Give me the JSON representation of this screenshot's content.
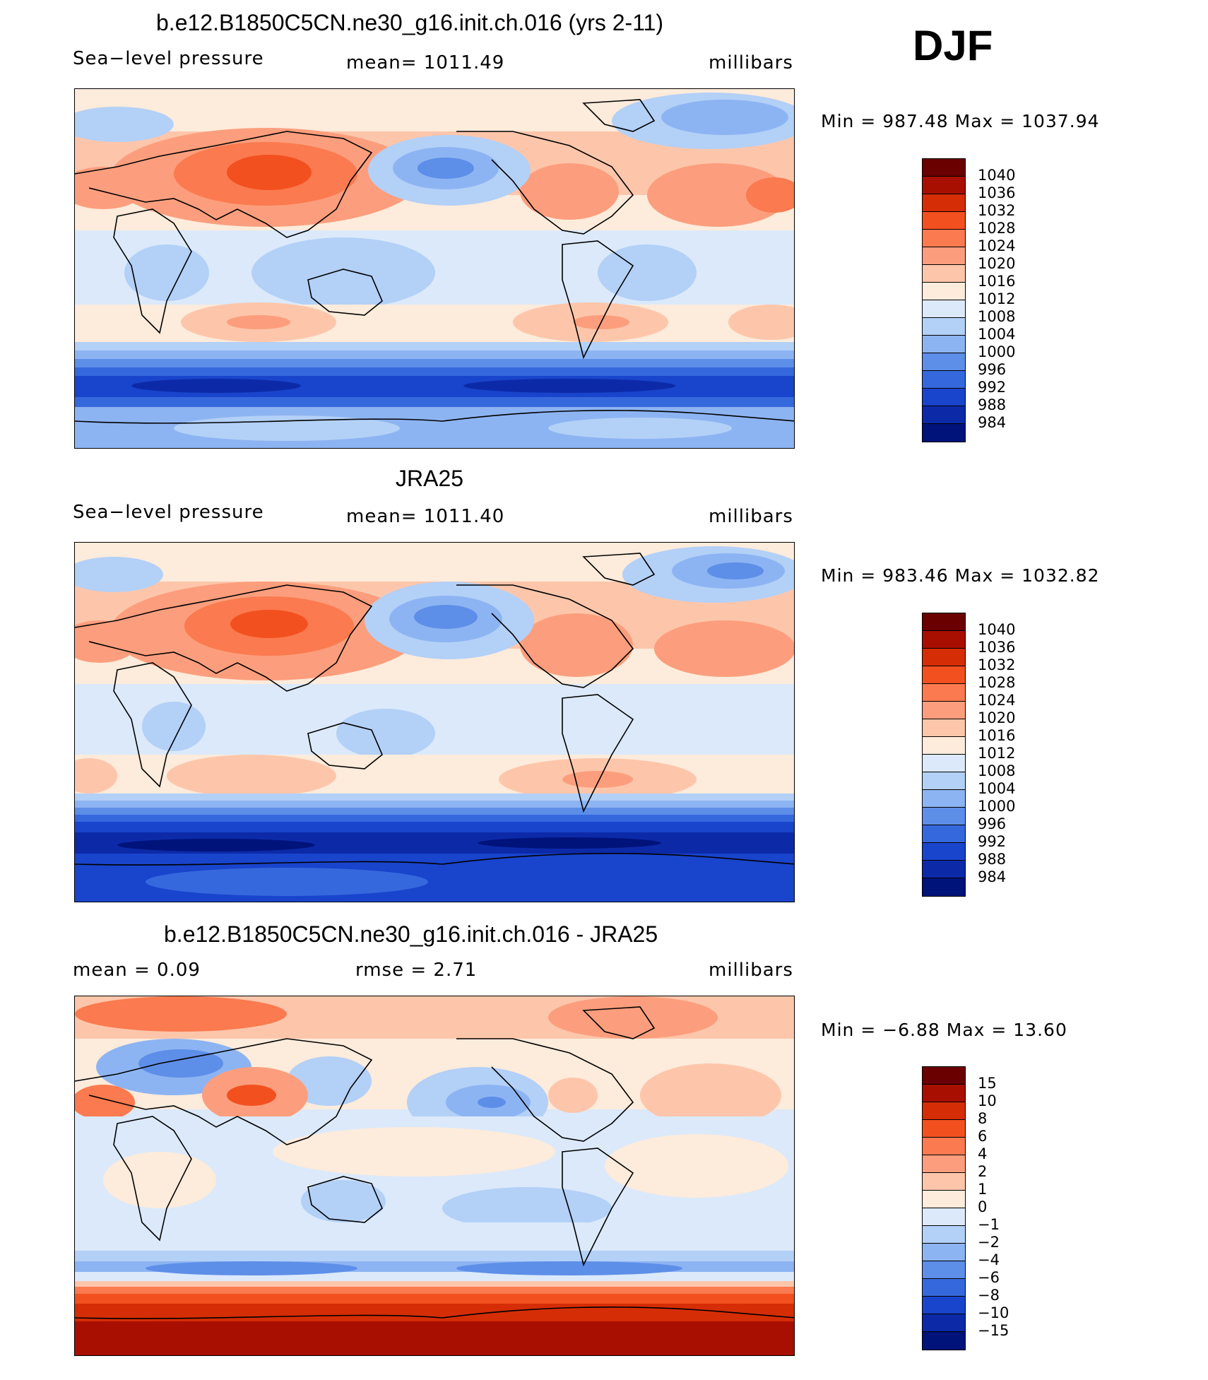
{
  "season": "DJF",
  "panels": [
    {
      "title": "b.e12.B1850C5CN.ne30_g16.init.ch.016 (yrs 2-11)",
      "left": "Sea−level pressure",
      "center": "mean=  1011.49",
      "units": "millibars",
      "minmax": "Min  =  987.48  Max  =  1037.94",
      "colorbar_labels": [
        "1040",
        "1036",
        "1032",
        "1028",
        "1024",
        "1020",
        "1016",
        "1012",
        "1008",
        "1004",
        "1000",
        "996",
        "992",
        "988",
        "984"
      ]
    },
    {
      "title": "JRA25",
      "left": "Sea−level pressure",
      "center": "mean=  1011.40",
      "units": "millibars",
      "minmax": "Min  =  983.46  Max  =  1032.82",
      "colorbar_labels": [
        "1040",
        "1036",
        "1032",
        "1028",
        "1024",
        "1020",
        "1016",
        "1012",
        "1008",
        "1004",
        "1000",
        "996",
        "992",
        "988",
        "984"
      ]
    },
    {
      "title": "b.e12.B1850C5CN.ne30_g16.init.ch.016 - JRA25",
      "left": "mean  =      0.09",
      "center": "rmse  =      2.71",
      "units": "millibars",
      "minmax": "Min  =    −6.88  Max  =     13.60",
      "colorbar_labels": [
        "15",
        "10",
        "8",
        "6",
        "4",
        "2",
        "1",
        "0",
        "−1",
        "−2",
        "−4",
        "−6",
        "−8",
        "−10",
        "−15"
      ]
    }
  ],
  "colors": {
    "scale": [
      "#6b0000",
      "#a80f00",
      "#d52d06",
      "#f3501f",
      "#fb7a4f",
      "#fc9e7d",
      "#fdc6ab",
      "#fdebdb",
      "#dbe9fa",
      "#b3d0f7",
      "#8db4f2",
      "#5d8ee8",
      "#3668dd",
      "#1944cc",
      "#0c2aa8",
      "#00137a"
    ],
    "land": "#000000"
  }
}
